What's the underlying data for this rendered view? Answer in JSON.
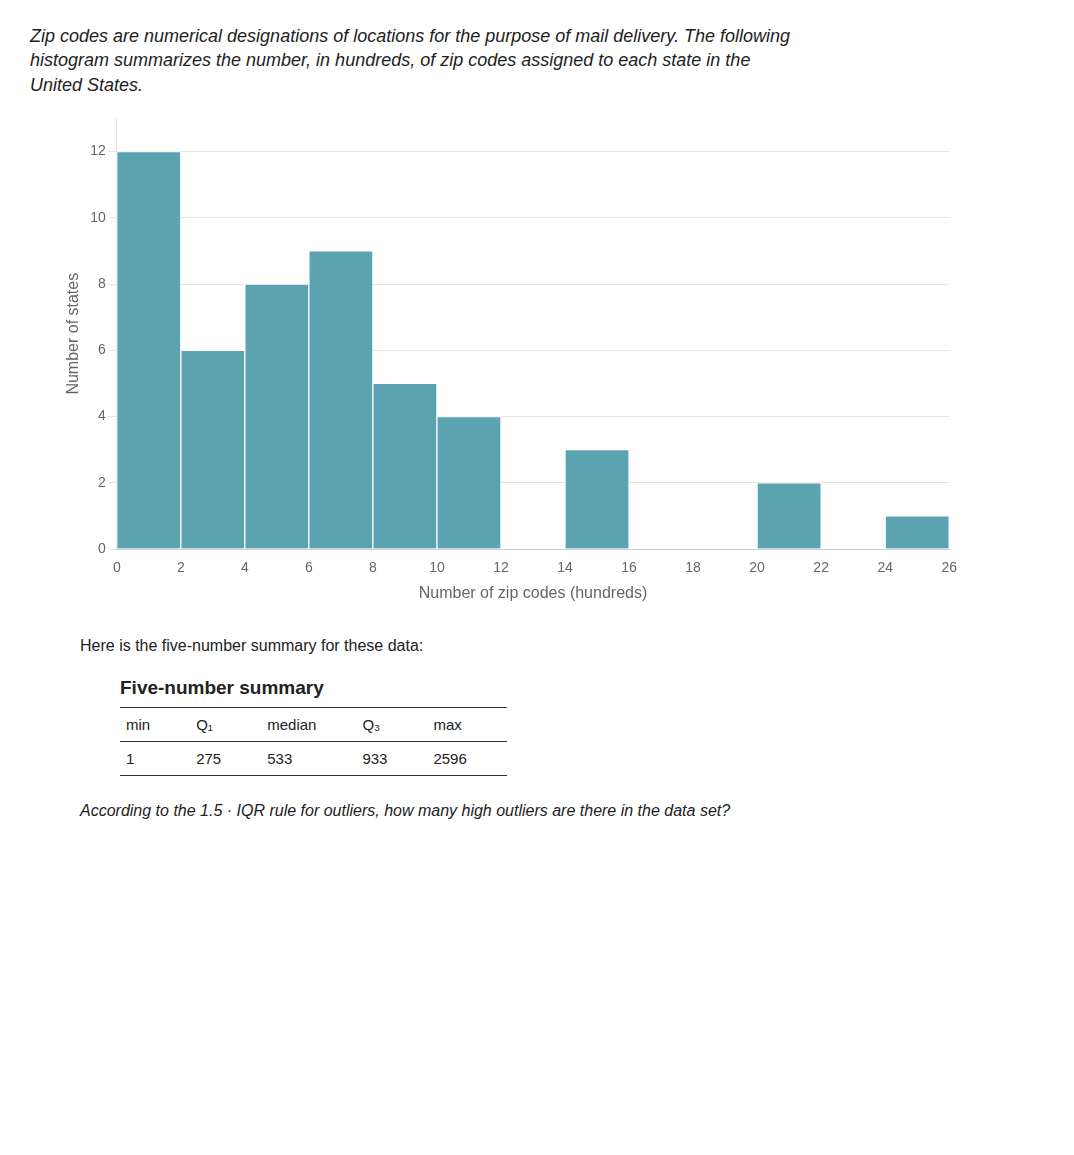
{
  "chart_data": {
    "type": "histogram",
    "title": "Zip codes are numerical designations of locations for the purpose of mail delivery. The following\nhistogram summarizes the number, in hundreds, of zip codes assigned to each state in the\nUnited States.",
    "xlabel": "Number of zip codes (hundreds)",
    "ylabel": "Number of states",
    "bins": [
      0,
      2,
      4,
      6,
      8,
      10,
      12,
      14,
      16,
      18,
      20,
      22,
      24,
      26
    ],
    "values": [
      12,
      6,
      8,
      9,
      5,
      4,
      0,
      3,
      0,
      0,
      2,
      0,
      1
    ],
    "color": "#5ba3b0",
    "xlim": [
      0,
      26
    ],
    "xticks": [
      0,
      2,
      4,
      6,
      8,
      10,
      12,
      14,
      16,
      18,
      20,
      22,
      24,
      26
    ],
    "ylim": [
      0,
      13
    ],
    "yticks": [
      0,
      2,
      4,
      6,
      8,
      10,
      12
    ],
    "grid": "y",
    "annotations": [
      "Here is the five-number summary for these data:",
      "According to the 1.5 · IQR rule for outliers, how many high outliers are there in the data set?"
    ],
    "table": {
      "title": "Five-number summary",
      "columns": [
        "min",
        "Q₁",
        "median",
        "Q₃",
        "max"
      ],
      "values": [
        1,
        275,
        533,
        933,
        2596
      ]
    }
  }
}
